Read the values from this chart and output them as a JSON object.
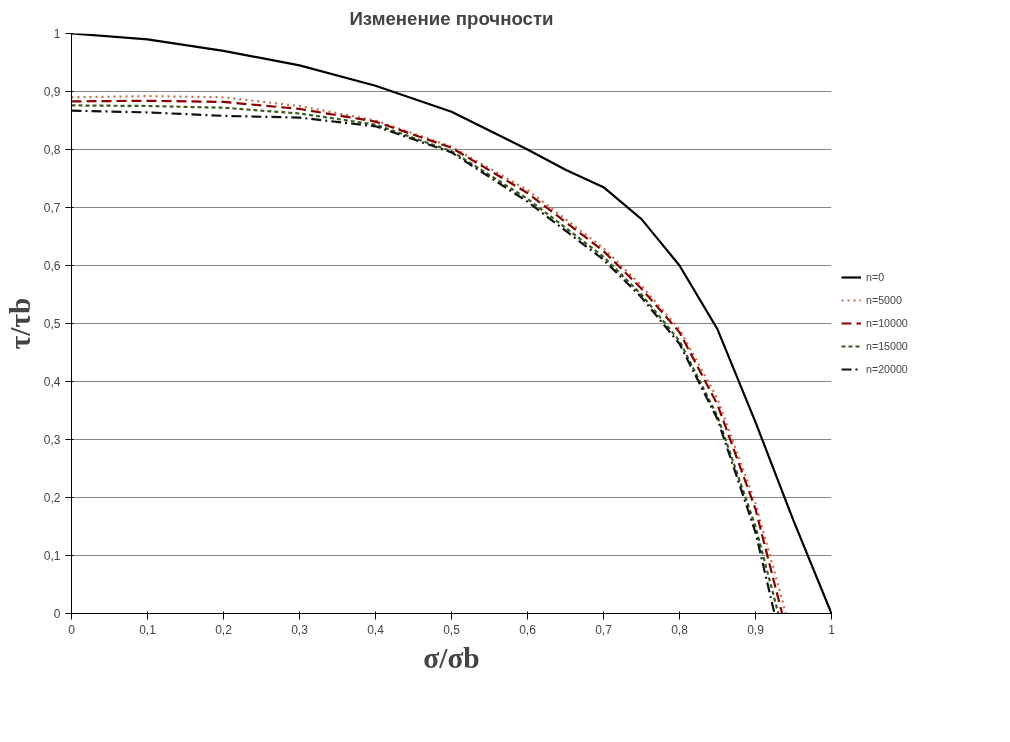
{
  "chart_data": {
    "type": "line",
    "title": "Изменение прочности",
    "xlabel": "σ/σb",
    "ylabel": "τ/τb",
    "xlim": [
      0,
      1
    ],
    "ylim": [
      0,
      1
    ],
    "xticks": [
      0,
      {
        "value": 0.1,
        "label": "0,1"
      },
      {
        "value": 0.2,
        "label": "0,2"
      },
      {
        "value": 0.3,
        "label": "0,3"
      },
      {
        "value": 0.4,
        "label": "0,4"
      },
      {
        "value": 0.5,
        "label": "0,5"
      },
      {
        "value": 0.6,
        "label": "0,6"
      },
      {
        "value": 0.7,
        "label": "0,7"
      },
      {
        "value": 0.8,
        "label": "0,8"
      },
      {
        "value": 0.9,
        "label": "0,9"
      },
      1
    ],
    "yticks": [
      0,
      {
        "value": 0.1,
        "label": "0,1"
      },
      {
        "value": 0.2,
        "label": "0,2"
      },
      {
        "value": 0.3,
        "label": "0,3"
      },
      {
        "value": 0.4,
        "label": "0,4"
      },
      {
        "value": 0.5,
        "label": "0,5"
      },
      {
        "value": 0.6,
        "label": "0,6"
      },
      {
        "value": 0.7,
        "label": "0,7"
      },
      {
        "value": 0.8,
        "label": "0,8"
      },
      {
        "value": 0.9,
        "label": "0,9"
      },
      1
    ],
    "grid": "y",
    "legend": "right",
    "series": [
      {
        "name": "n=0",
        "color": "#000000",
        "line_style": "solid",
        "x": [
          0,
          0.1,
          0.2,
          0.3,
          0.4,
          0.5,
          0.6,
          0.65,
          0.7,
          0.75,
          0.8,
          0.85,
          0.9,
          0.95,
          1.0
        ],
        "values": [
          1,
          0.99,
          0.97,
          0.945,
          0.91,
          0.865,
          0.8,
          0.765,
          0.735,
          0.68,
          0.6,
          0.49,
          0.33,
          0.16,
          0
        ]
      },
      {
        "name": "n=5000",
        "color": "#c0704a",
        "line_style": "dotted",
        "x": [
          0,
          0.1,
          0.2,
          0.3,
          0.4,
          0.5,
          0.6,
          0.7,
          0.75,
          0.8,
          0.85,
          0.9,
          0.94
        ],
        "values": [
          0.89,
          0.892,
          0.89,
          0.875,
          0.85,
          0.805,
          0.73,
          0.63,
          0.565,
          0.49,
          0.37,
          0.19,
          0
        ]
      },
      {
        "name": "n=10000",
        "color": "#8b0000",
        "line_style": "dashed",
        "x": [
          0,
          0.1,
          0.2,
          0.3,
          0.4,
          0.5,
          0.6,
          0.7,
          0.75,
          0.8,
          0.85,
          0.9,
          0.935
        ],
        "values": [
          0.883,
          0.884,
          0.882,
          0.87,
          0.848,
          0.803,
          0.725,
          0.625,
          0.56,
          0.485,
          0.36,
          0.18,
          0
        ]
      },
      {
        "name": "n=15000",
        "color": "#3b5a1e",
        "line_style": "shortdash",
        "x": [
          0,
          0.1,
          0.2,
          0.3,
          0.4,
          0.5,
          0.6,
          0.7,
          0.75,
          0.8,
          0.85,
          0.9,
          0.93
        ],
        "values": [
          0.876,
          0.875,
          0.872,
          0.862,
          0.843,
          0.797,
          0.715,
          0.615,
          0.55,
          0.47,
          0.34,
          0.15,
          0
        ]
      },
      {
        "name": "n=20000",
        "color": "#111111",
        "line_style": "dashdot",
        "x": [
          0,
          0.1,
          0.2,
          0.3,
          0.4,
          0.5,
          0.6,
          0.7,
          0.75,
          0.8,
          0.85,
          0.9,
          0.925
        ],
        "values": [
          0.867,
          0.864,
          0.858,
          0.855,
          0.84,
          0.795,
          0.71,
          0.61,
          0.545,
          0.465,
          0.335,
          0.14,
          0
        ]
      }
    ]
  }
}
